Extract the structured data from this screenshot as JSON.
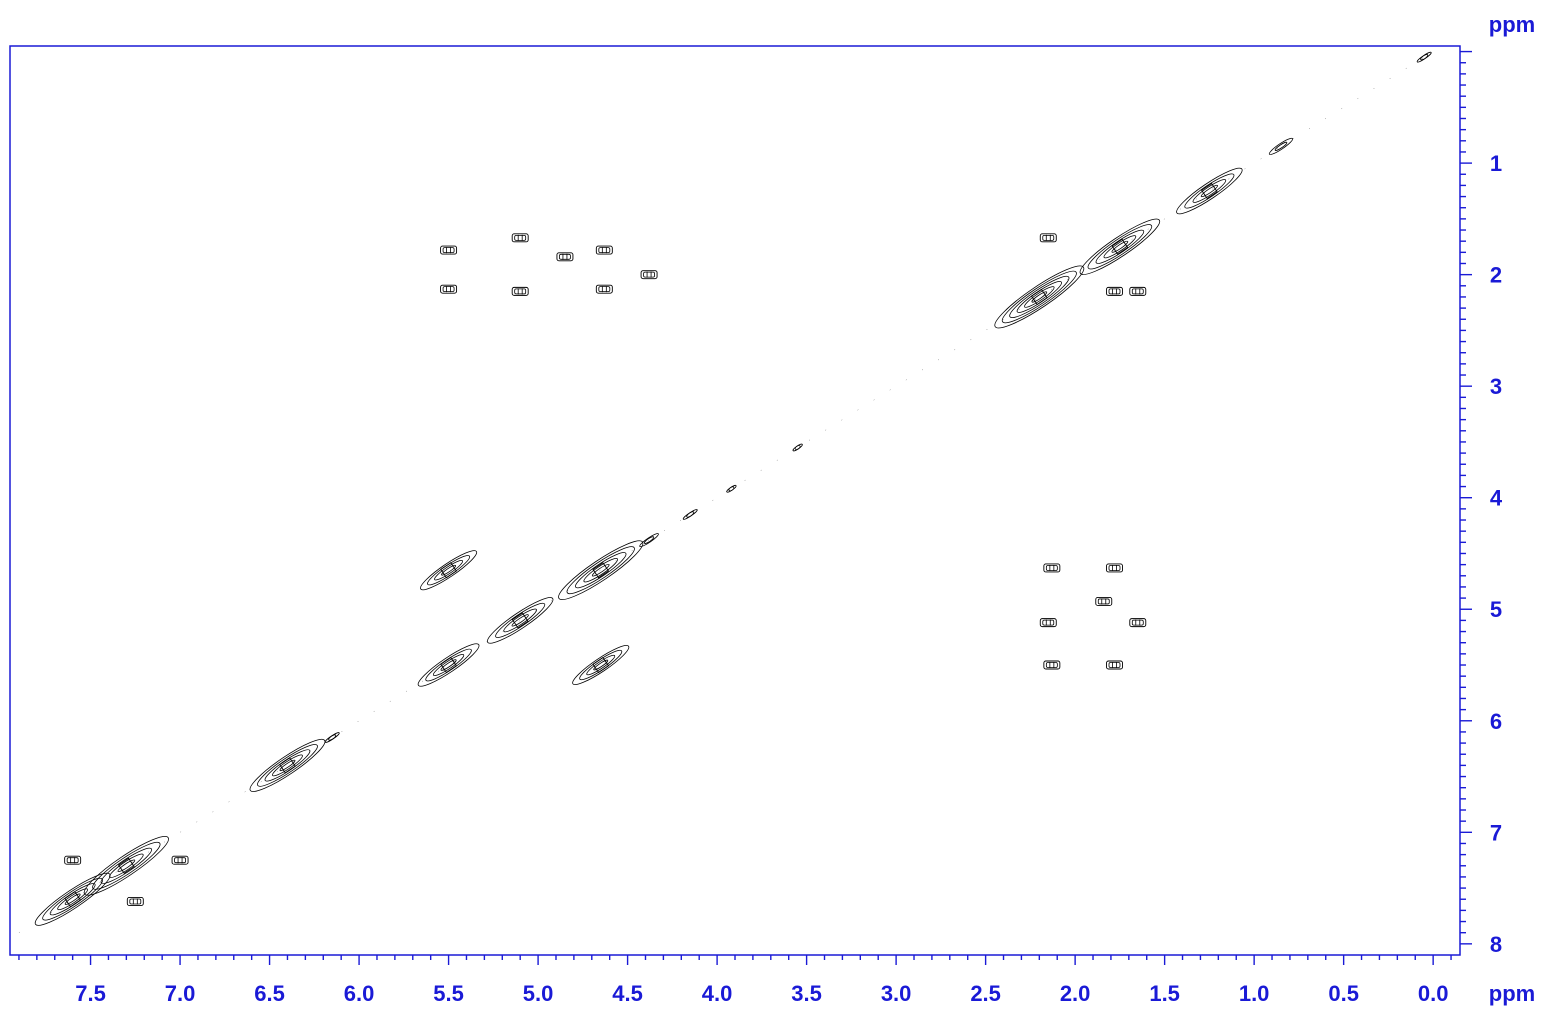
{
  "chart_data": {
    "type": "contour",
    "title": "",
    "xlabel": "ppm",
    "ylabel": "ppm",
    "xlim": [
      7.95,
      -0.15
    ],
    "ylim": [
      -0.05,
      8.1
    ],
    "x_ticks": [
      "7.5",
      "7.0",
      "6.5",
      "6.0",
      "5.5",
      "5.0",
      "4.5",
      "4.0",
      "3.5",
      "3.0",
      "2.5",
      "2.0",
      "1.5",
      "1.0",
      "0.5",
      "0.0"
    ],
    "x_tick_values": [
      7.5,
      7.0,
      6.5,
      6.0,
      5.5,
      5.0,
      4.5,
      4.0,
      3.5,
      3.0,
      2.5,
      2.0,
      1.5,
      1.0,
      0.5,
      0.0
    ],
    "y_ticks": [
      "1",
      "2",
      "3",
      "4",
      "5",
      "6",
      "7",
      "8"
    ],
    "y_tick_values": [
      1,
      2,
      3,
      4,
      5,
      6,
      7,
      8
    ],
    "axis_color": "#1a1ad6",
    "contour_color": "#000000",
    "diagonal_peaks": [
      {
        "x": 7.6,
        "y": 7.6,
        "s": 1.6
      },
      {
        "x": 7.3,
        "y": 7.3,
        "s": 1.8
      },
      {
        "x": 6.4,
        "y": 6.4,
        "s": 1.6
      },
      {
        "x": 6.15,
        "y": 6.15,
        "s": 0.3
      },
      {
        "x": 5.5,
        "y": 5.5,
        "s": 1.3
      },
      {
        "x": 5.5,
        "y": 4.65,
        "s": 1.2
      },
      {
        "x": 4.65,
        "y": 5.5,
        "s": 1.2
      },
      {
        "x": 5.1,
        "y": 5.1,
        "s": 1.4
      },
      {
        "x": 4.65,
        "y": 4.65,
        "s": 1.8
      },
      {
        "x": 4.38,
        "y": 4.38,
        "s": 0.4
      },
      {
        "x": 4.15,
        "y": 4.15,
        "s": 0.3
      },
      {
        "x": 3.92,
        "y": 3.92,
        "s": 0.2
      },
      {
        "x": 3.55,
        "y": 3.55,
        "s": 0.2
      },
      {
        "x": 2.2,
        "y": 2.2,
        "s": 1.9
      },
      {
        "x": 1.75,
        "y": 1.75,
        "s": 1.7
      },
      {
        "x": 1.25,
        "y": 1.25,
        "s": 1.4
      },
      {
        "x": 0.85,
        "y": 0.85,
        "s": 0.5
      },
      {
        "x": 0.05,
        "y": 0.05,
        "s": 0.3
      }
    ],
    "cross_peaks": [
      {
        "x": 5.5,
        "y": 1.78
      },
      {
        "x": 5.5,
        "y": 2.13
      },
      {
        "x": 5.1,
        "y": 1.67
      },
      {
        "x": 5.1,
        "y": 2.15
      },
      {
        "x": 4.63,
        "y": 1.78
      },
      {
        "x": 4.63,
        "y": 2.13
      },
      {
        "x": 4.85,
        "y": 1.84
      },
      {
        "x": 4.38,
        "y": 2.0
      },
      {
        "x": 2.15,
        "y": 1.67
      },
      {
        "x": 1.78,
        "y": 2.15
      },
      {
        "x": 1.65,
        "y": 2.15
      },
      {
        "x": 2.13,
        "y": 4.63
      },
      {
        "x": 1.78,
        "y": 4.63
      },
      {
        "x": 2.15,
        "y": 5.12
      },
      {
        "x": 1.65,
        "y": 5.12
      },
      {
        "x": 2.13,
        "y": 5.5
      },
      {
        "x": 1.78,
        "y": 5.5
      },
      {
        "x": 1.84,
        "y": 4.93
      },
      {
        "x": 7.6,
        "y": 7.25
      },
      {
        "x": 7.25,
        "y": 7.62
      },
      {
        "x": 7.0,
        "y": 7.25
      }
    ]
  }
}
